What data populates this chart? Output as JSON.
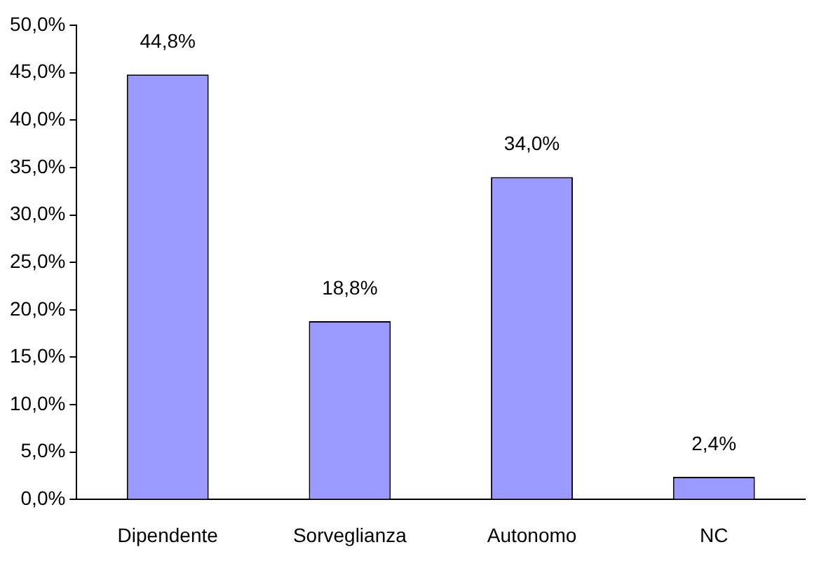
{
  "chart_data": {
    "type": "bar",
    "categories": [
      "Dipendente",
      "Sorveglianza",
      "Autonomo",
      "NC"
    ],
    "values": [
      44.8,
      18.8,
      34.0,
      2.4
    ],
    "color": "#9999ff",
    "value_labels": [
      "44,8%",
      "18,8%",
      "34,0%",
      "2,4%"
    ],
    "ylim": [
      0,
      50
    ],
    "yticks": [
      {
        "value": 0,
        "label": "0,0%"
      },
      {
        "value": 5,
        "label": "5,0%"
      },
      {
        "value": 10,
        "label": "10,0%"
      },
      {
        "value": 15,
        "label": "15,0%"
      },
      {
        "value": 20,
        "label": "20,0%"
      },
      {
        "value": 25,
        "label": "25,0%"
      },
      {
        "value": 30,
        "label": "30,0%"
      },
      {
        "value": 35,
        "label": "35,0%"
      },
      {
        "value": 40,
        "label": "40,0%"
      },
      {
        "value": 45,
        "label": "45,0%"
      },
      {
        "value": 50,
        "label": "50,0%"
      }
    ],
    "grid": false,
    "legend": false
  }
}
